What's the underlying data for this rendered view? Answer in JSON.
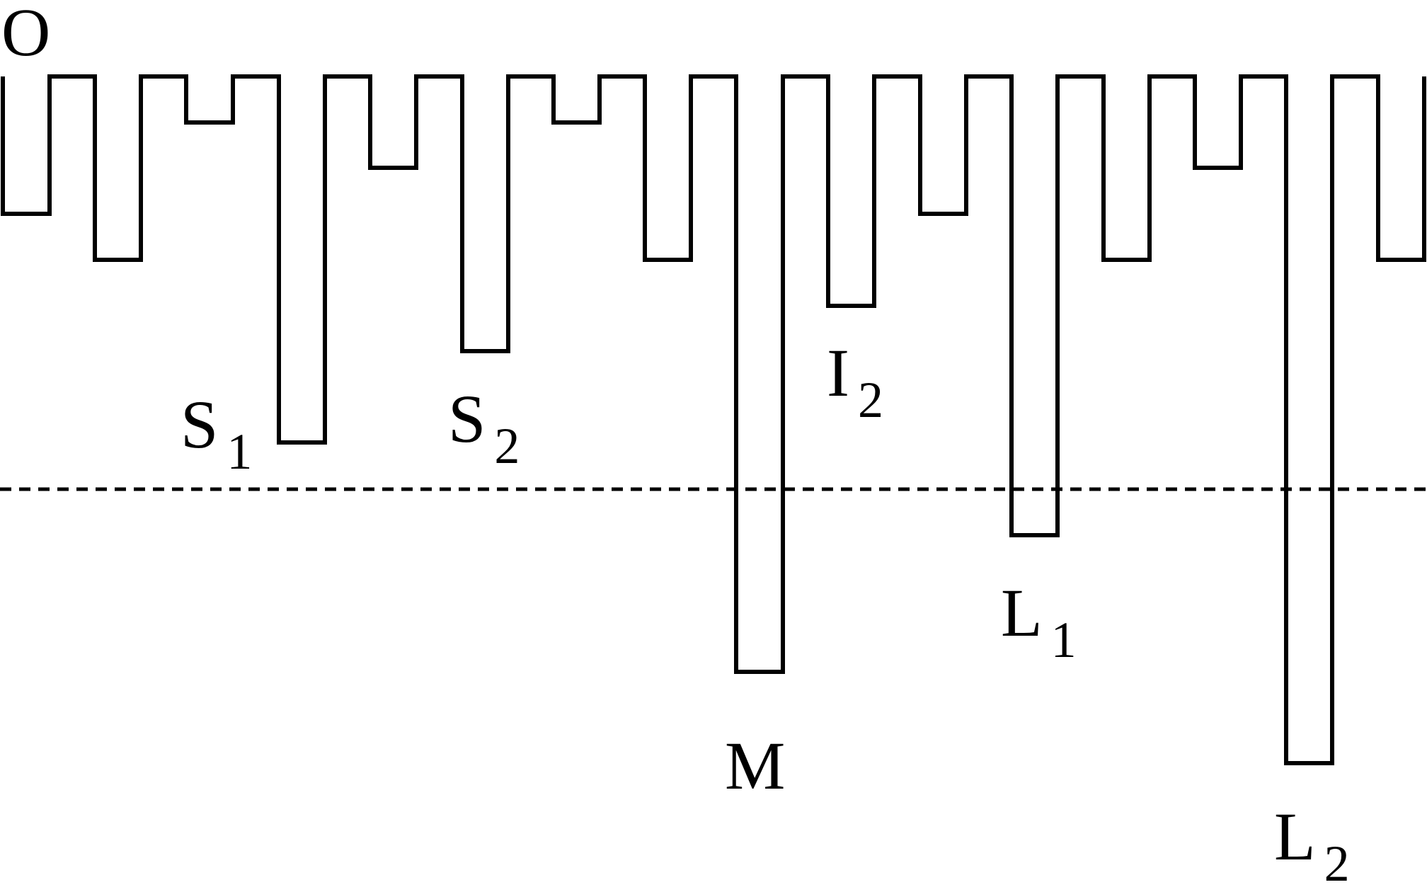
{
  "diagram": {
    "origin_label": "O",
    "labels": [
      {
        "id": "S1",
        "letter": "S",
        "sub": "1"
      },
      {
        "id": "S2",
        "letter": "S",
        "sub": "2"
      },
      {
        "id": "I2",
        "letter": "I",
        "sub": "2"
      },
      {
        "id": "M",
        "letter": "M",
        "sub": ""
      },
      {
        "id": "L1",
        "letter": "L",
        "sub": "1"
      },
      {
        "id": "L2",
        "letter": "L",
        "sub": "2"
      }
    ]
  },
  "colors": {
    "line": "#000000",
    "background": "#ffffff"
  }
}
